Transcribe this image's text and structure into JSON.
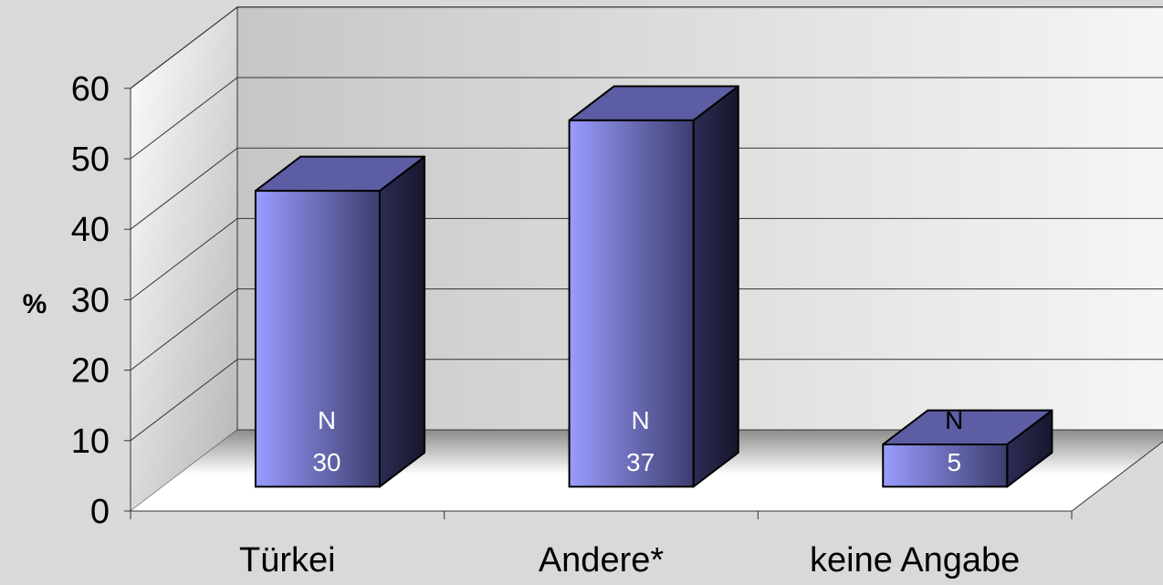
{
  "colors": {
    "background": "#d9d9d9",
    "back_wall_dark": "#c6c6c6",
    "back_wall_light": "#f6f6f6",
    "side_wall_light": "#ffffff",
    "side_wall_dark": "#b4b4b4",
    "floor_front": "#ffffff",
    "floor_back": "#8c8c8c",
    "bar_front_light": "#9a9cff",
    "bar_front_dark": "#3c3d6e",
    "bar_top": "#5c5da2",
    "bar_side_light": "#2c2c55",
    "bar_side_dark": "#16162c",
    "grid": "#333333",
    "text": "#000000",
    "bar_label": "#ffffff"
  },
  "chart_data": {
    "type": "bar",
    "title": "",
    "xlabel": "",
    "ylabel": "%",
    "categories": [
      "Türkei",
      "Andere*",
      "keine Angabe"
    ],
    "values": [
      42,
      52,
      6
    ],
    "bar_labels": [
      {
        "line1": "N",
        "line2": "30"
      },
      {
        "line1": "N",
        "line2": "37"
      },
      {
        "line1": "N",
        "line2": "5"
      }
    ],
    "ylim": [
      0,
      60
    ],
    "yticks": [
      "0",
      "10",
      "20",
      "30",
      "40",
      "50",
      "60"
    ],
    "grid": true,
    "style": "3d-column"
  }
}
